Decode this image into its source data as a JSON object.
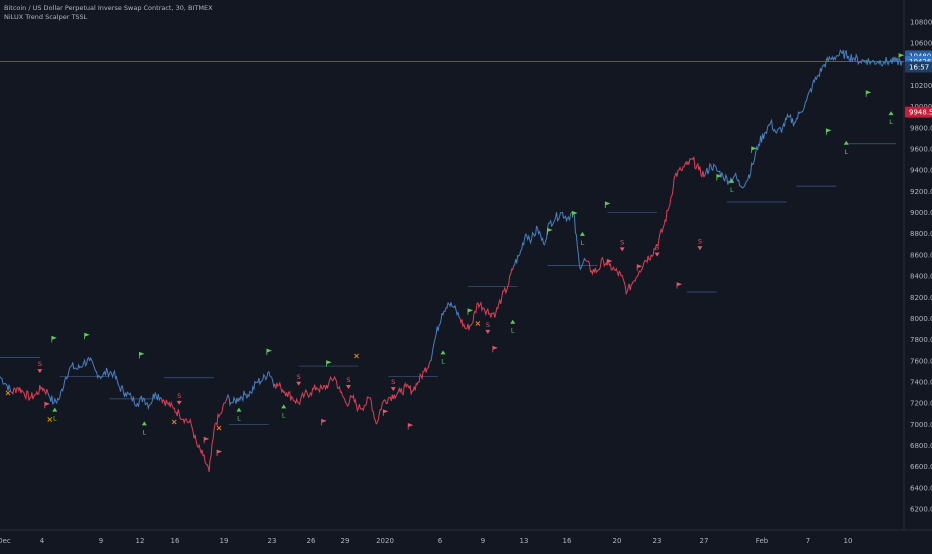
{
  "legend": {
    "title": "Bitcoin / US Dollar Perpetual Inverse Swap Contract, 30, BITMEX",
    "indicator": "NiLUX Trend Scalper TSSL"
  },
  "colors": {
    "background": "#131722",
    "grid": "#1c2030",
    "axis_text": "#b2b5be",
    "bull_line": "#4a7fc0",
    "bear_line": "#d94157",
    "bull_marker": "#5fc95a",
    "bear_marker": "#e0566a",
    "exit_marker": "#f5871f",
    "ref_line": "#2962ff"
  },
  "price_badges": [
    {
      "label": "10480.5",
      "value": 10480.5,
      "color": "#2a5c9e"
    },
    {
      "label": "10426.5",
      "value": 10426.5,
      "color": "#2f73c4"
    },
    {
      "label": "16:57",
      "value": 10375,
      "color": "#1e3e66"
    },
    {
      "label": "9948.5",
      "value": 9948.5,
      "color": "#c41f3a"
    }
  ],
  "chart_data": {
    "type": "line",
    "title": "Bitcoin / US Dollar Perpetual Inverse Swap Contract, 30, BITMEX",
    "xlabel": "",
    "ylabel": "",
    "ylim": [
      6000,
      11000
    ],
    "x_ticks": [
      "Dec",
      "4",
      "9",
      "12",
      "16",
      "19",
      "23",
      "26",
      "29",
      "2020",
      "6",
      "9",
      "13",
      "16",
      "20",
      "23",
      "27",
      "Feb",
      "7",
      "10"
    ],
    "y_ticks": [
      6200,
      6400,
      6600,
      6800,
      7000,
      7200,
      7400,
      7600,
      7800,
      8000,
      8200,
      8400,
      8600,
      8800,
      9000,
      9200,
      9400,
      9600,
      9800,
      10000,
      10200,
      10400,
      10600,
      10800
    ],
    "y_tick_labels": [
      "6200.0",
      "6400.0",
      "6600.0",
      "6800.0",
      "7000.0",
      "7200.0",
      "7400.0",
      "7600.0",
      "7800.0",
      "8000.0",
      "8200.0",
      "8400.0",
      "8600.0",
      "8800.0",
      "9000.0",
      "9200.0",
      "9400.0",
      "9600.0",
      "9800.0",
      "10000.0",
      "10200.0",
      "10400.0",
      "10600.0",
      "10800.0"
    ],
    "reference_line": 10426.5,
    "grid": false,
    "series": [
      {
        "name": "",
        "x": [
          0,
          6,
          12,
          18,
          24,
          30,
          36,
          42,
          48,
          54,
          60,
          66,
          72,
          78,
          84,
          90,
          96,
          102,
          108,
          114,
          120,
          126,
          132,
          138,
          144,
          150,
          156,
          162,
          168,
          174,
          180,
          186,
          192,
          198,
          204,
          210,
          216,
          222,
          228,
          234,
          240,
          246,
          252,
          258,
          264,
          270,
          276,
          282,
          288,
          294,
          300,
          306,
          312,
          318,
          324,
          330,
          336,
          342,
          348,
          354,
          360,
          366,
          372,
          378,
          384,
          390,
          396,
          402,
          408,
          414,
          420,
          426,
          432,
          438,
          444,
          450,
          456,
          462,
          468,
          474,
          480,
          486,
          492,
          498,
          504,
          510,
          516,
          522,
          528,
          534,
          540,
          546,
          552,
          558,
          564,
          570,
          576,
          582,
          588,
          594,
          600,
          606,
          612,
          618,
          624,
          630,
          636,
          642,
          648,
          654,
          660,
          666,
          672,
          678,
          684,
          690,
          696,
          702,
          708,
          714,
          720,
          726,
          732,
          738,
          744,
          750,
          756,
          762,
          768,
          774,
          780,
          786,
          792,
          798,
          804,
          810,
          816,
          822,
          828,
          834,
          840,
          846,
          852,
          858,
          864,
          870,
          876,
          882,
          888,
          894,
          900,
          906
        ],
        "y": [
          7450,
          7380,
          7300,
          7350,
          7300,
          7250,
          7280,
          7350,
          7300,
          7200,
          7250,
          7450,
          7550,
          7520,
          7580,
          7600,
          7500,
          7450,
          7500,
          7480,
          7350,
          7300,
          7250,
          7200,
          7250,
          7180,
          7300,
          7250,
          7200,
          7150,
          7100,
          7050,
          7000,
          6800,
          6700,
          6550,
          7000,
          7100,
          7250,
          7200,
          7250,
          7280,
          7300,
          7400,
          7420,
          7500,
          7380,
          7350,
          7300,
          7250,
          7200,
          7280,
          7300,
          7350,
          7330,
          7380,
          7450,
          7300,
          7200,
          7250,
          7150,
          7180,
          7250,
          7000,
          7200,
          7250,
          7280,
          7300,
          7350,
          7320,
          7400,
          7500,
          7600,
          7850,
          8050,
          8150,
          8100,
          8000,
          7900,
          7950,
          8150,
          8100,
          8050,
          8050,
          8200,
          8300,
          8500,
          8600,
          8800,
          8750,
          8850,
          8700,
          8900,
          8950,
          9000,
          8950,
          9000,
          8500,
          8550,
          8450,
          8450,
          8550,
          8500,
          8450,
          8400,
          8250,
          8350,
          8450,
          8550,
          8600,
          8700,
          8850,
          9050,
          9350,
          9400,
          9450,
          9500,
          9400,
          9350,
          9450,
          9400,
          9350,
          9300,
          9350,
          9250,
          9300,
          9450,
          9650,
          9750,
          9850,
          9750,
          9800,
          9900,
          9850,
          9950,
          10050,
          10200,
          10300,
          10400,
          10450,
          10480,
          10500,
          10480,
          10460,
          10430,
          10440,
          10420,
          10430,
          10426.5,
          10426.5,
          10426.5,
          10426.5
        ]
      }
    ],
    "bear_segments": [
      [
        10,
        50
      ],
      [
        160,
        230
      ],
      [
        275,
        430
      ],
      [
        465,
        515
      ],
      [
        590,
        710
      ]
    ],
    "long_flags": [
      {
        "x": 52,
        "y": 7830
      },
      {
        "x": 85,
        "y": 7860
      },
      {
        "x": 140,
        "y": 7680
      },
      {
        "x": 268,
        "y": 7710
      },
      {
        "x": 328,
        "y": 7600
      },
      {
        "x": 470,
        "y": 8090
      },
      {
        "x": 550,
        "y": 8850
      },
      {
        "x": 575,
        "y": 9010
      },
      {
        "x": 608,
        "y": 9100
      },
      {
        "x": 720,
        "y": 9360
      },
      {
        "x": 755,
        "y": 9620
      },
      {
        "x": 830,
        "y": 9790
      },
      {
        "x": 870,
        "y": 10150
      },
      {
        "x": 903,
        "y": 10500
      }
    ],
    "short_flags": [
      {
        "x": 45,
        "y": 7150
      },
      {
        "x": 205,
        "y": 6820
      },
      {
        "x": 218,
        "y": 6700
      },
      {
        "x": 323,
        "y": 6990
      },
      {
        "x": 385,
        "y": 7080
      },
      {
        "x": 410,
        "y": 6950
      },
      {
        "x": 495,
        "y": 7680
      },
      {
        "x": 610,
        "y": 8500
      },
      {
        "x": 640,
        "y": 8450
      },
      {
        "x": 680,
        "y": 8280
      }
    ],
    "long_labels": [
      {
        "x": 55,
        "y": 7120
      },
      {
        "x": 145,
        "y": 6990
      },
      {
        "x": 240,
        "y": 7120
      },
      {
        "x": 285,
        "y": 7150
      },
      {
        "x": 445,
        "y": 7660
      },
      {
        "x": 515,
        "y": 7950
      },
      {
        "x": 585,
        "y": 8780
      },
      {
        "x": 735,
        "y": 9280
      },
      {
        "x": 850,
        "y": 9640
      },
      {
        "x": 895,
        "y": 9920
      }
    ],
    "short_labels": [
      {
        "x": 40,
        "y": 7550
      },
      {
        "x": 180,
        "y": 7250
      },
      {
        "x": 300,
        "y": 7430
      },
      {
        "x": 350,
        "y": 7400
      },
      {
        "x": 395,
        "y": 7380
      },
      {
        "x": 490,
        "y": 7920
      },
      {
        "x": 625,
        "y": 8700
      },
      {
        "x": 660,
        "y": 8650
      },
      {
        "x": 703,
        "y": 8710
      }
    ],
    "exit_marks": [
      {
        "x": 8,
        "y": 7270
      },
      {
        "x": 50,
        "y": 7020
      },
      {
        "x": 175,
        "y": 7000
      },
      {
        "x": 220,
        "y": 6940
      },
      {
        "x": 358,
        "y": 7620
      },
      {
        "x": 480,
        "y": 7930
      }
    ],
    "stop_levels": [
      {
        "x1": 0,
        "x2": 40,
        "y": 7630
      },
      {
        "x1": 60,
        "x2": 110,
        "y": 7450
      },
      {
        "x1": 110,
        "x2": 160,
        "y": 7240
      },
      {
        "x1": 165,
        "x2": 215,
        "y": 7440
      },
      {
        "x1": 230,
        "x2": 270,
        "y": 7000
      },
      {
        "x1": 300,
        "x2": 360,
        "y": 7550
      },
      {
        "x1": 390,
        "x2": 440,
        "y": 7450
      },
      {
        "x1": 470,
        "x2": 520,
        "y": 8300
      },
      {
        "x1": 550,
        "x2": 600,
        "y": 8500
      },
      {
        "x1": 610,
        "x2": 660,
        "y": 9000
      },
      {
        "x1": 690,
        "x2": 720,
        "y": 8250
      },
      {
        "x1": 730,
        "x2": 790,
        "y": 9100
      },
      {
        "x1": 800,
        "x2": 840,
        "y": 9250
      },
      {
        "x1": 850,
        "x2": 900,
        "y": 9650
      }
    ]
  }
}
